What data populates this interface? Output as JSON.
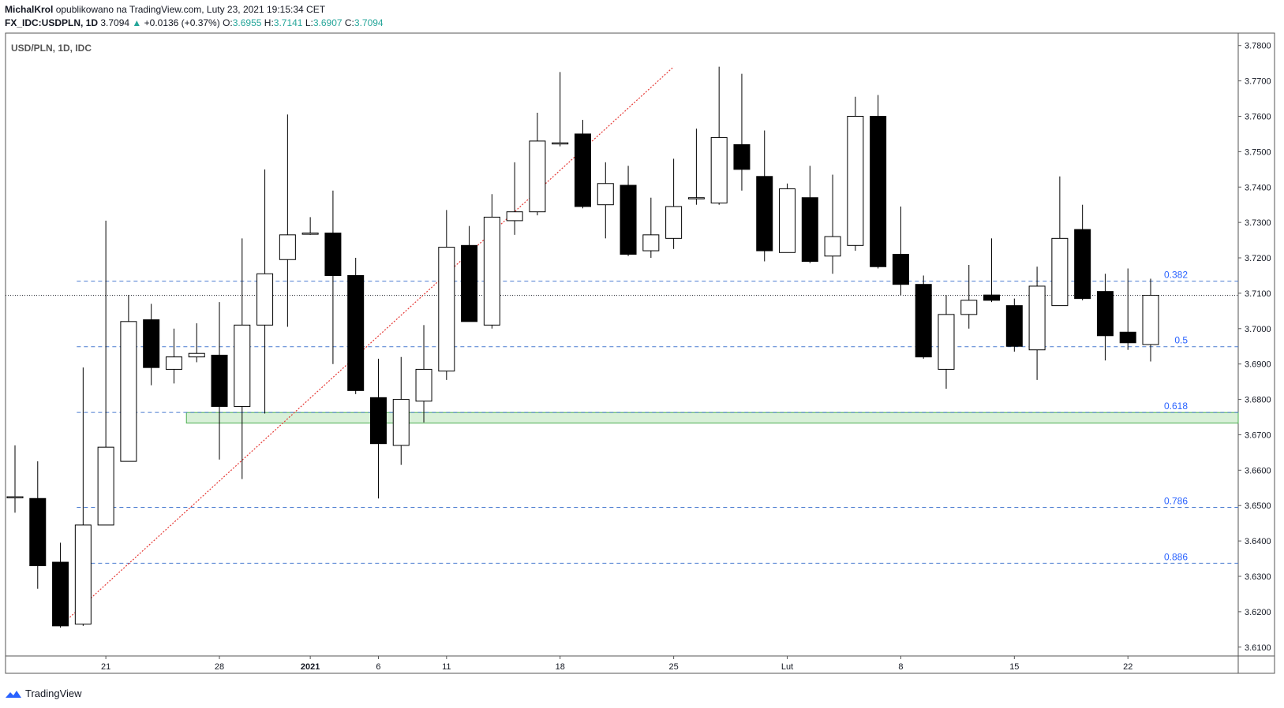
{
  "header": {
    "author": "MichalKrol",
    "published": "opublikowano na TradingView.com, Luty 23, 2021 19:15:34 CET",
    "symbol": "FX_IDC:USDPLN, 1D",
    "last": "3.7094",
    "change_arrow": "▲",
    "change": "+0.0136 (+0.37%)",
    "o_label": "O:",
    "o_val": "3.6955",
    "h_label": "H:",
    "h_val": "3.7141",
    "l_label": "L:",
    "l_val": "3.6907",
    "c_label": "C:",
    "c_val": "3.7094"
  },
  "footer": {
    "brand": "TradingView",
    "logo_icon": "tradingview-logo-icon"
  },
  "colors": {
    "bull_fill": "#ffffff",
    "bear_fill": "#000000",
    "fib_line": "#4a7bd0",
    "fib_label": "#2962ff",
    "trend_line": "#e53935",
    "zone_fill": "#d8f0d8",
    "zone_border": "#4caf50"
  },
  "chart_data": {
    "type": "candlestick",
    "title": "USD/PLN, 1D, IDC",
    "ylim": [
      3.6075,
      3.7835
    ],
    "y_ticks": [
      "3.6100",
      "3.6200",
      "3.6300",
      "3.6400",
      "3.6500",
      "3.6600",
      "3.6700",
      "3.6800",
      "3.6900",
      "3.7000",
      "3.7100",
      "3.7200",
      "3.7300",
      "3.7400",
      "3.7500",
      "3.7600",
      "3.7700",
      "3.7800"
    ],
    "x_ticks": [
      {
        "label": "21",
        "index": 4
      },
      {
        "label": "28",
        "index": 9
      },
      {
        "label": "2021",
        "index": 13
      },
      {
        "label": "6",
        "index": 16
      },
      {
        "label": "11",
        "index": 19
      },
      {
        "label": "18",
        "index": 24
      },
      {
        "label": "25",
        "index": 29
      },
      {
        "label": "Lut",
        "index": 34
      },
      {
        "label": "8",
        "index": 39
      },
      {
        "label": "15",
        "index": 44
      },
      {
        "label": "22",
        "index": 49
      }
    ],
    "candles": [
      {
        "o": 3.6525,
        "h": 3.667,
        "l": 3.648,
        "c": 3.6525
      },
      {
        "o": 3.652,
        "h": 3.6625,
        "l": 3.6265,
        "c": 3.633
      },
      {
        "o": 3.634,
        "h": 3.6395,
        "l": 3.6155,
        "c": 3.616
      },
      {
        "o": 3.6165,
        "h": 3.689,
        "l": 3.616,
        "c": 3.6445
      },
      {
        "o": 3.6445,
        "h": 3.7305,
        "l": 3.6445,
        "c": 3.6665
      },
      {
        "o": 3.6625,
        "h": 3.7095,
        "l": 3.6625,
        "c": 3.702
      },
      {
        "o": 3.7025,
        "h": 3.707,
        "l": 3.684,
        "c": 3.689
      },
      {
        "o": 3.6885,
        "h": 3.7,
        "l": 3.6845,
        "c": 3.692
      },
      {
        "o": 3.692,
        "h": 3.7015,
        "l": 3.6905,
        "c": 3.693
      },
      {
        "o": 3.6925,
        "h": 3.7075,
        "l": 3.663,
        "c": 3.678
      },
      {
        "o": 3.678,
        "h": 3.7255,
        "l": 3.6575,
        "c": 3.701
      },
      {
        "o": 3.701,
        "h": 3.745,
        "l": 3.676,
        "c": 3.7155
      },
      {
        "o": 3.7195,
        "h": 3.7605,
        "l": 3.7005,
        "c": 3.7265
      },
      {
        "o": 3.727,
        "h": 3.7315,
        "l": 3.7265,
        "c": 3.727
      },
      {
        "o": 3.727,
        "h": 3.739,
        "l": 3.69,
        "c": 3.715
      },
      {
        "o": 3.715,
        "h": 3.72,
        "l": 3.6815,
        "c": 3.6825
      },
      {
        "o": 3.6805,
        "h": 3.6915,
        "l": 3.652,
        "c": 3.6675
      },
      {
        "o": 3.667,
        "h": 3.692,
        "l": 3.6615,
        "c": 3.68
      },
      {
        "o": 3.6795,
        "h": 3.701,
        "l": 3.6735,
        "c": 3.6885
      },
      {
        "o": 3.688,
        "h": 3.7335,
        "l": 3.6855,
        "c": 3.723
      },
      {
        "o": 3.7235,
        "h": 3.729,
        "l": 3.702,
        "c": 3.702
      },
      {
        "o": 3.701,
        "h": 3.738,
        "l": 3.7,
        "c": 3.7315
      },
      {
        "o": 3.7305,
        "h": 3.747,
        "l": 3.7265,
        "c": 3.733
      },
      {
        "o": 3.733,
        "h": 3.761,
        "l": 3.732,
        "c": 3.753
      },
      {
        "o": 3.7525,
        "h": 3.7725,
        "l": 3.7515,
        "c": 3.7525
      },
      {
        "o": 3.755,
        "h": 3.759,
        "l": 3.734,
        "c": 3.7345
      },
      {
        "o": 3.735,
        "h": 3.747,
        "l": 3.7255,
        "c": 3.741
      },
      {
        "o": 3.7405,
        "h": 3.746,
        "l": 3.7205,
        "c": 3.721
      },
      {
        "o": 3.722,
        "h": 3.737,
        "l": 3.72,
        "c": 3.7265
      },
      {
        "o": 3.7255,
        "h": 3.748,
        "l": 3.7225,
        "c": 3.7345
      },
      {
        "o": 3.737,
        "h": 3.7565,
        "l": 3.735,
        "c": 3.737
      },
      {
        "o": 3.7355,
        "h": 3.774,
        "l": 3.735,
        "c": 3.754
      },
      {
        "o": 3.752,
        "h": 3.772,
        "l": 3.739,
        "c": 3.745
      },
      {
        "o": 3.743,
        "h": 3.756,
        "l": 3.719,
        "c": 3.722
      },
      {
        "o": 3.7215,
        "h": 3.741,
        "l": 3.7215,
        "c": 3.7395
      },
      {
        "o": 3.737,
        "h": 3.746,
        "l": 3.7185,
        "c": 3.719
      },
      {
        "o": 3.7205,
        "h": 3.7435,
        "l": 3.7155,
        "c": 3.726
      },
      {
        "o": 3.7235,
        "h": 3.7655,
        "l": 3.722,
        "c": 3.76
      },
      {
        "o": 3.76,
        "h": 3.766,
        "l": 3.717,
        "c": 3.7175
      },
      {
        "o": 3.721,
        "h": 3.7345,
        "l": 3.7095,
        "c": 3.7125
      },
      {
        "o": 3.7125,
        "h": 3.715,
        "l": 3.6915,
        "c": 3.692
      },
      {
        "o": 3.6885,
        "h": 3.7095,
        "l": 3.683,
        "c": 3.704
      },
      {
        "o": 3.704,
        "h": 3.718,
        "l": 3.7,
        "c": 3.708
      },
      {
        "o": 3.7095,
        "h": 3.7255,
        "l": 3.7075,
        "c": 3.708
      },
      {
        "o": 3.7065,
        "h": 3.7085,
        "l": 3.6935,
        "c": 3.695
      },
      {
        "o": 3.694,
        "h": 3.7175,
        "l": 3.6855,
        "c": 3.712
      },
      {
        "o": 3.7065,
        "h": 3.743,
        "l": 3.7065,
        "c": 3.7255
      },
      {
        "o": 3.728,
        "h": 3.735,
        "l": 3.708,
        "c": 3.7085
      },
      {
        "o": 3.7105,
        "h": 3.7155,
        "l": 3.691,
        "c": 3.698
      },
      {
        "o": 3.699,
        "h": 3.717,
        "l": 3.694,
        "c": 3.696
      },
      {
        "o": 3.6955,
        "h": 3.7141,
        "l": 3.6907,
        "c": 3.7094
      }
    ],
    "current_price": 3.7094,
    "fib_levels": [
      {
        "label": "0.382",
        "value": 3.7134
      },
      {
        "label": "0.5",
        "value": 3.6949
      },
      {
        "label": "0.618",
        "value": 3.6763
      },
      {
        "label": "0.786",
        "value": 3.6495
      },
      {
        "label": "0.886",
        "value": 3.6337
      }
    ],
    "support_zone": {
      "from_index": 8,
      "low": 3.6733,
      "high": 3.6763
    },
    "trend_line": {
      "start_index": 2,
      "start_value": 3.616,
      "end_index": 29,
      "end_value": 3.774
    }
  }
}
